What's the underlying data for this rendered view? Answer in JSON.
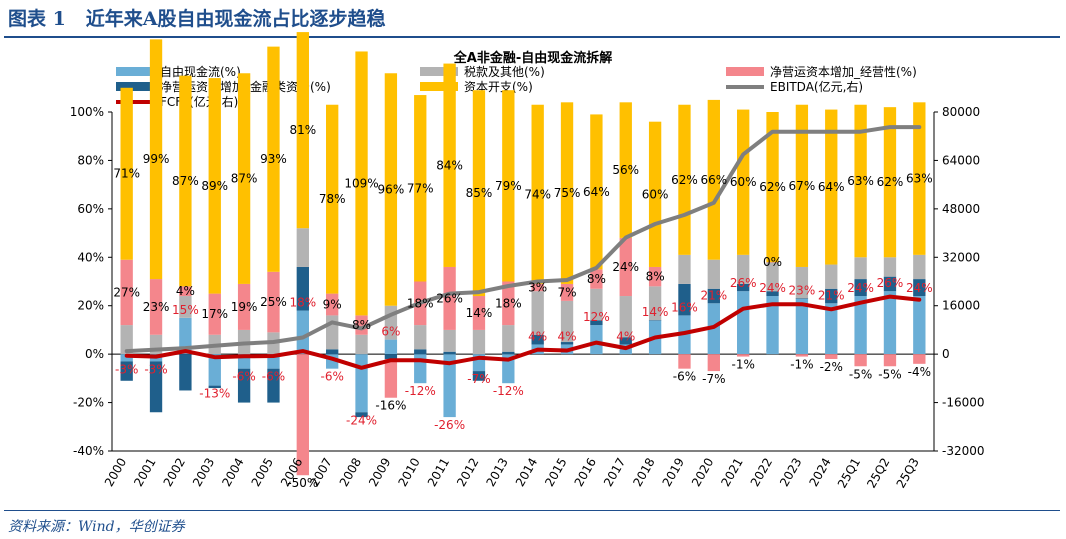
{
  "figure": {
    "label": "图表 1",
    "title": "近年来A股自由现金流占比逐步趋稳",
    "source": "资料来源：Wind，华创证券"
  },
  "chart_data": {
    "type": "bar",
    "title": "全A非金融-自由现金流拆解",
    "stacked": true,
    "legend_position": "top",
    "grid": false,
    "categories": [
      "2000",
      "2001",
      "2002",
      "2003",
      "2004",
      "2005",
      "2006",
      "2007",
      "2008",
      "2009",
      "2010",
      "2011",
      "2012",
      "2013",
      "2014",
      "2015",
      "2016",
      "2017",
      "2018",
      "2019",
      "2020",
      "2021",
      "2022",
      "2023",
      "2024",
      "25Q1",
      "25Q2",
      "25Q3"
    ],
    "y_left": {
      "min": -40,
      "max": 100,
      "step": 20,
      "unit": "%",
      "ticks": [
        "-40%",
        "-20%",
        "0%",
        "20%",
        "40%",
        "60%",
        "80%",
        "100%"
      ]
    },
    "y_right": {
      "min": -32000,
      "max": 80000,
      "step": 16000,
      "ticks": [
        "-32000",
        "-16000",
        "0",
        "16000",
        "32000",
        "48000",
        "64000",
        "80000"
      ]
    },
    "bar_series": [
      {
        "key": "fcf",
        "name": "自由现金流(%)",
        "color": "#6aaed6",
        "values": [
          -3,
          -3,
          15,
          -13,
          -6,
          -6,
          18,
          -6,
          -24,
          6,
          -12,
          -26,
          -7,
          -12,
          4,
          4,
          12,
          4,
          14,
          16,
          21,
          26,
          24,
          23,
          21,
          24,
          26,
          24
        ]
      },
      {
        "key": "fin",
        "name": "净营运资本增加_金融类资产(%)",
        "color": "#1f5f8b",
        "values": [
          -8,
          -21,
          -15,
          -1,
          -14,
          -14,
          18,
          2,
          -2,
          -2,
          2,
          1,
          -4,
          1,
          4,
          1,
          2,
          3,
          0,
          13,
          6,
          3,
          2,
          0,
          6,
          7,
          6,
          7
        ]
      },
      {
        "key": "tax",
        "name": "税款及其他(%)",
        "color": "#b3b3b3",
        "values": [
          12,
          8,
          9,
          8,
          10,
          9,
          16,
          14,
          8,
          14,
          10,
          9,
          10,
          11,
          18,
          17,
          13,
          17,
          14,
          12,
          12,
          12,
          12,
          13,
          10,
          9,
          8,
          10
        ]
      },
      {
        "key": "op",
        "name": "净营运资本增加_经营性(%)",
        "color": "#f4868c",
        "values": [
          27,
          23,
          4,
          17,
          19,
          25,
          -50,
          9,
          8,
          -16,
          18,
          26,
          14,
          18,
          3,
          7,
          8,
          24,
          8,
          -6,
          -7,
          -1,
          0,
          -1,
          -2,
          -5,
          -5,
          -4
        ]
      },
      {
        "key": "capex",
        "name": "资本开支(%)",
        "color": "#ffc000",
        "values": [
          71,
          99,
          87,
          89,
          87,
          93,
          81,
          78,
          109,
          96,
          77,
          84,
          85,
          79,
          74,
          75,
          64,
          56,
          60,
          62,
          66,
          60,
          62,
          67,
          64,
          63,
          62,
          63
        ]
      }
    ],
    "line_series": [
      {
        "key": "ebitda",
        "name": "EBITDA(亿元,右)",
        "color": "#7f7f7f",
        "axis": "right",
        "values": [
          1000,
          1500,
          2000,
          2800,
          3500,
          4000,
          5500,
          10500,
          8500,
          13000,
          17000,
          20000,
          20500,
          22500,
          24000,
          24500,
          28500,
          38500,
          43000,
          46000,
          50000,
          66000,
          73500,
          73500,
          73500,
          73500,
          75000,
          75000
        ]
      },
      {
        "key": "fcff",
        "name": "FCFF(亿元,右)",
        "color": "#c00000",
        "axis": "right",
        "values": [
          -500,
          -800,
          1000,
          -1000,
          -700,
          -600,
          1000,
          -1500,
          -4500,
          -2000,
          -2000,
          -3000,
          -1200,
          -1800,
          1500,
          1200,
          3800,
          2000,
          5500,
          7000,
          9000,
          15000,
          16500,
          16500,
          14800,
          17000,
          19000,
          18000
        ]
      }
    ],
    "data_labels": {
      "capex": [
        "71%",
        "99%",
        "87%",
        "89%",
        "87%",
        "93%",
        "81%",
        "78%",
        "109%",
        "96%",
        "77%",
        "84%",
        "85%",
        "79%",
        "74%",
        "75%",
        "64%",
        "56%",
        "60%",
        "62%",
        "66%",
        "60%",
        "62%",
        "67%",
        "64%",
        "63%",
        "62%",
        "63%"
      ],
      "op": [
        "27%",
        "23%",
        "4%",
        "17%",
        "19%",
        "25%",
        "-50%",
        "9%",
        "8%",
        "-16%",
        "18%",
        "26%",
        "14%",
        "18%",
        "3%",
        "7%",
        "8%",
        "24%",
        "8%",
        "-6%",
        "-7%",
        "-1%",
        "0%",
        "-1%",
        "-2%",
        "-5%",
        "-5%",
        "-4%"
      ],
      "fcf": [
        "-3%",
        "-3%",
        "15%",
        "-13%",
        "-6%",
        "-6%",
        "18%",
        "-6%",
        "-24%",
        "6%",
        "-12%",
        "-26%",
        "-7%",
        "-12%",
        "4%",
        "4%",
        "12%",
        "4%",
        "14%",
        "16%",
        "21%",
        "26%",
        "24%",
        "23%",
        "21%",
        "24%",
        "26%",
        "24%"
      ]
    }
  }
}
